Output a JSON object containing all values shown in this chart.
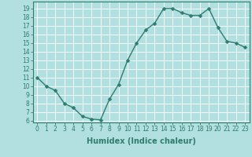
{
  "x": [
    0,
    1,
    2,
    3,
    4,
    5,
    6,
    7,
    8,
    9,
    10,
    11,
    12,
    13,
    14,
    15,
    16,
    17,
    18,
    19,
    20,
    21,
    22,
    23
  ],
  "y": [
    11,
    10,
    9.5,
    8,
    7.5,
    6.5,
    6.2,
    6.1,
    8.5,
    10.2,
    13,
    15,
    16.5,
    17.3,
    19,
    19,
    18.5,
    18.2,
    18.2,
    19,
    16.8,
    15.2,
    15,
    14.5
  ],
  "line_color": "#2e7d6e",
  "marker_color": "#2e7d6e",
  "bg_color": "#b2dfdf",
  "grid_color": "#ffffff",
  "xlabel": "Humidex (Indice chaleur)",
  "xlim": [
    -0.5,
    23.5
  ],
  "ylim": [
    5.8,
    19.8
  ],
  "yticks": [
    6,
    7,
    8,
    9,
    10,
    11,
    12,
    13,
    14,
    15,
    16,
    17,
    18,
    19
  ],
  "xticks": [
    0,
    1,
    2,
    3,
    4,
    5,
    6,
    7,
    8,
    9,
    10,
    11,
    12,
    13,
    14,
    15,
    16,
    17,
    18,
    19,
    20,
    21,
    22,
    23
  ],
  "xtick_labels": [
    "0",
    "1",
    "2",
    "3",
    "4",
    "5",
    "6",
    "7",
    "8",
    "9",
    "10",
    "11",
    "12",
    "13",
    "14",
    "15",
    "16",
    "17",
    "18",
    "19",
    "20",
    "21",
    "22",
    "23"
  ],
  "xlabel_fontsize": 7,
  "tick_fontsize": 5.5,
  "line_width": 1.0,
  "marker_size": 2.5
}
